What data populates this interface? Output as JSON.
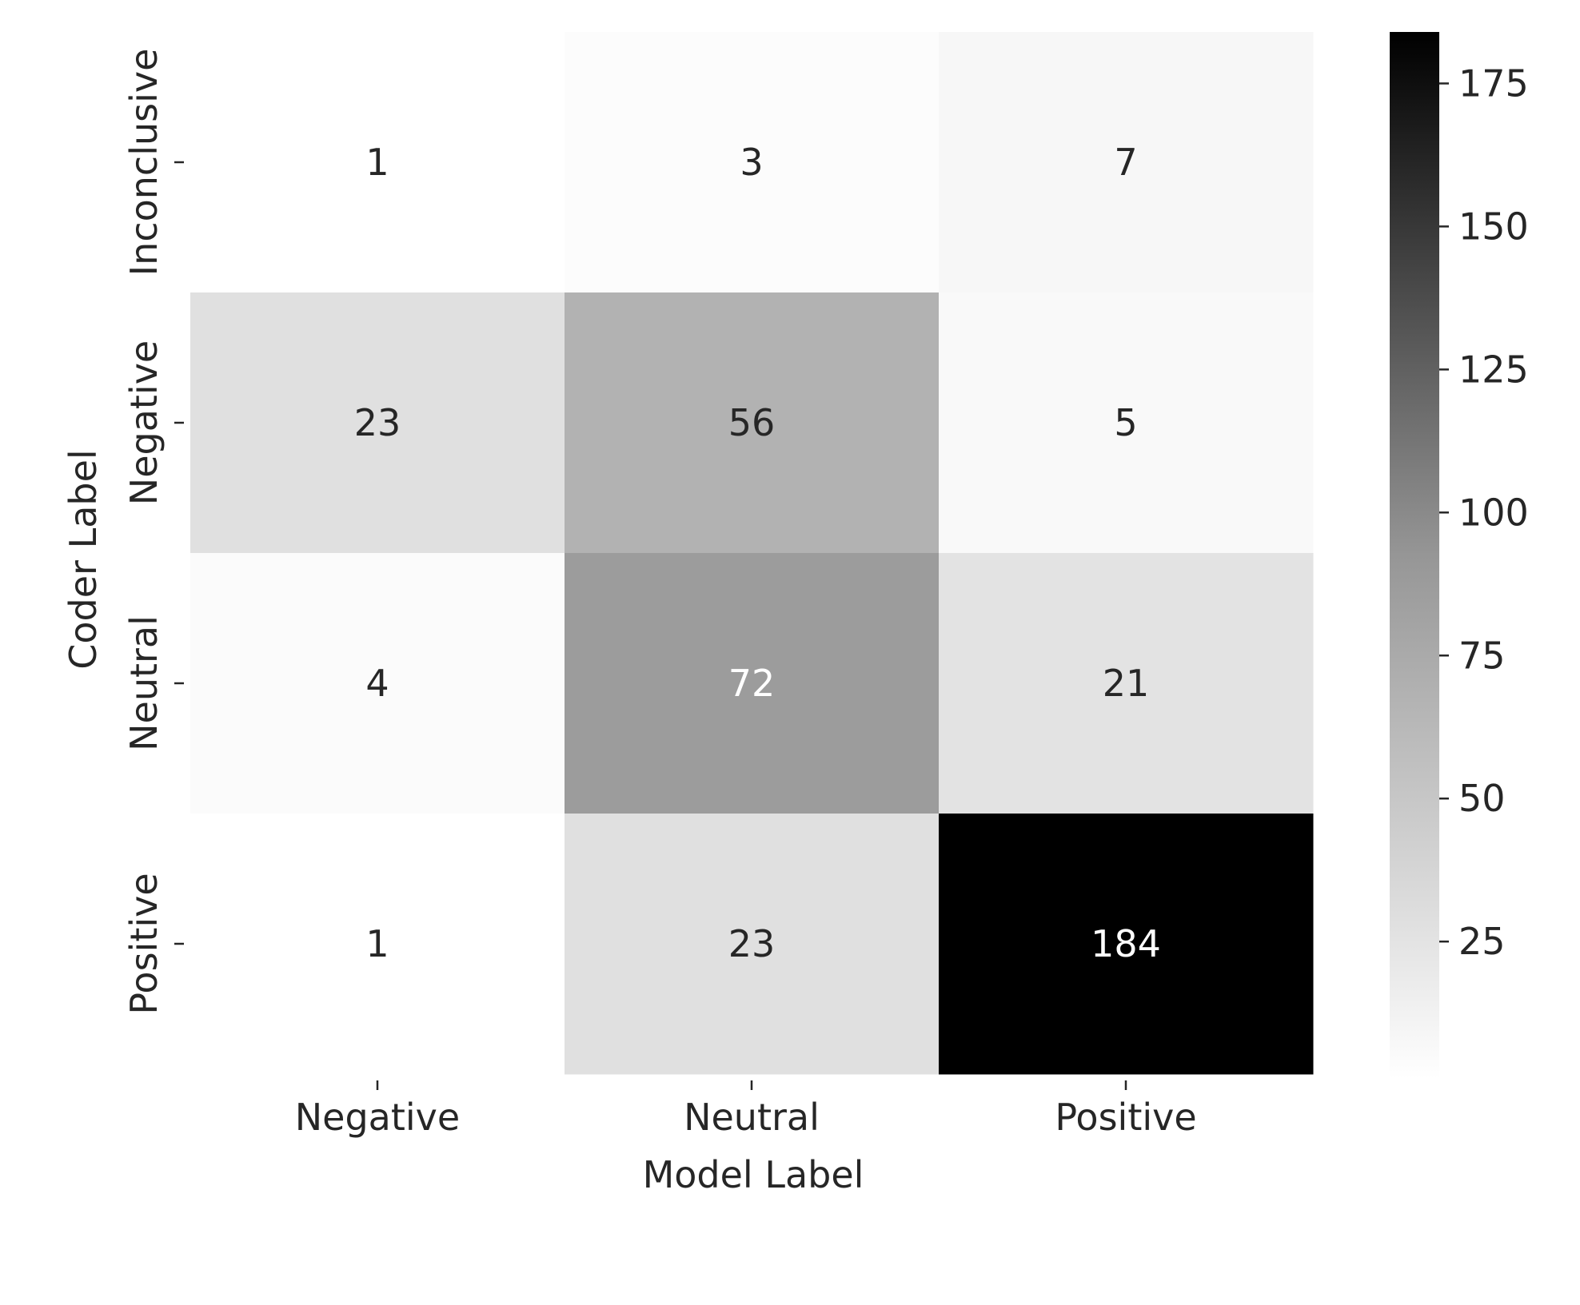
{
  "chart_data": {
    "type": "heatmap",
    "title": "",
    "xlabel": "Model Label",
    "ylabel": "Coder Label",
    "x_categories": [
      "Negative",
      "Neutral",
      "Positive"
    ],
    "y_categories": [
      "Inconclusive",
      "Negative",
      "Neutral",
      "Positive"
    ],
    "values": [
      [
        1,
        3,
        7
      ],
      [
        23,
        56,
        5
      ],
      [
        4,
        72,
        21
      ],
      [
        1,
        23,
        184
      ]
    ],
    "colormap": "Greys",
    "colorbar": {
      "range": [
        1,
        184
      ],
      "ticks": [
        25,
        50,
        75,
        100,
        125,
        150,
        175
      ]
    },
    "grid": false,
    "annotation_colors": {
      "dark_text": "#262626",
      "light_text": "#ffffff"
    }
  }
}
